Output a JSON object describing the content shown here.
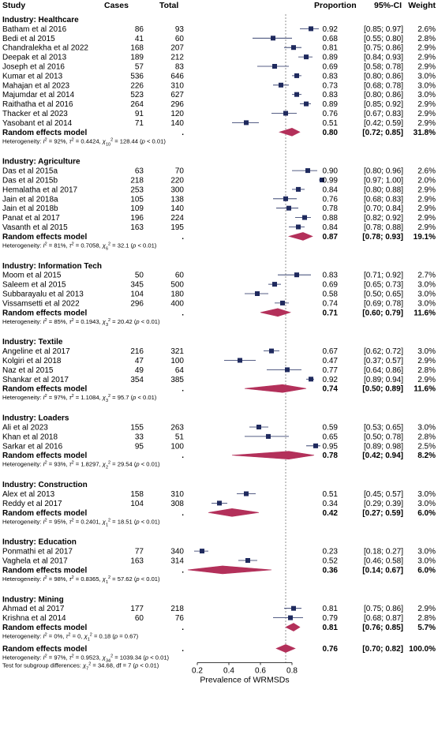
{
  "chart_data": {
    "type": "forest",
    "columns": {
      "study": "Study",
      "cases": "Cases",
      "total": "Total",
      "proportion": "Proportion",
      "ci": "95%-CI",
      "weight": "Weight"
    },
    "xlim": [
      0.2,
      1.0
    ],
    "xticks": [
      "0.2",
      "0.4",
      "0.6",
      "0.8"
    ],
    "xtick_values": [
      0.2,
      0.4,
      0.6,
      0.8
    ],
    "xlabel": "Prevalence of WRMSDs",
    "reference_line": 0.76,
    "groups": [
      {
        "title": "Industry: Healthcare",
        "studies": [
          {
            "name": "Batham et al  2016",
            "cases": "86",
            "total": "93",
            "est": 0.92,
            "lo": 0.85,
            "hi": 0.97,
            "est_txt": "0.92",
            "ci_txt": "[0.85; 0.97]",
            "weight": "2.6%"
          },
          {
            "name": "Bedi et al 2015",
            "cases": "41",
            "total": "60",
            "est": 0.68,
            "lo": 0.55,
            "hi": 0.8,
            "est_txt": "0.68",
            "ci_txt": "[0.55; 0.80]",
            "weight": "2.8%"
          },
          {
            "name": "Chandralekha et al 2022",
            "cases": "168",
            "total": "207",
            "est": 0.81,
            "lo": 0.75,
            "hi": 0.86,
            "est_txt": "0.81",
            "ci_txt": "[0.75; 0.86]",
            "weight": "2.9%"
          },
          {
            "name": "Deepak et al  2013",
            "cases": "189",
            "total": "212",
            "est": 0.89,
            "lo": 0.84,
            "hi": 0.93,
            "est_txt": "0.89",
            "ci_txt": "[0.84; 0.93]",
            "weight": "2.9%"
          },
          {
            "name": "Joseph et al 2016",
            "cases": "57",
            "total": "83",
            "est": 0.69,
            "lo": 0.58,
            "hi": 0.78,
            "est_txt": "0.69",
            "ci_txt": "[0.58; 0.78]",
            "weight": "2.9%"
          },
          {
            "name": "Kumar et al 2013",
            "cases": "536",
            "total": "646",
            "est": 0.83,
            "lo": 0.8,
            "hi": 0.86,
            "est_txt": "0.83",
            "ci_txt": "[0.80; 0.86]",
            "weight": "3.0%"
          },
          {
            "name": "Mahajan et al 2023",
            "cases": "226",
            "total": "310",
            "est": 0.73,
            "lo": 0.68,
            "hi": 0.78,
            "est_txt": "0.73",
            "ci_txt": "[0.68; 0.78]",
            "weight": "3.0%"
          },
          {
            "name": "Majumdar et al  2014",
            "cases": "523",
            "total": "627",
            "est": 0.83,
            "lo": 0.8,
            "hi": 0.86,
            "est_txt": "0.83",
            "ci_txt": "[0.80; 0.86]",
            "weight": "3.0%"
          },
          {
            "name": "Raithatha et al  2016",
            "cases": "264",
            "total": "296",
            "est": 0.89,
            "lo": 0.85,
            "hi": 0.92,
            "est_txt": "0.89",
            "ci_txt": "[0.85; 0.92]",
            "weight": "2.9%"
          },
          {
            "name": "Thacker et al 2023",
            "cases": "91",
            "total": "120",
            "est": 0.76,
            "lo": 0.67,
            "hi": 0.83,
            "est_txt": "0.76",
            "ci_txt": "[0.67; 0.83]",
            "weight": "2.9%"
          },
          {
            "name": "Yasobant et al  2014",
            "cases": "71",
            "total": "140",
            "est": 0.51,
            "lo": 0.42,
            "hi": 0.59,
            "est_txt": "0.51",
            "ci_txt": "[0.42; 0.59]",
            "weight": "2.9%"
          }
        ],
        "pooled": {
          "label": "Random effects model",
          "dot": ".",
          "est": 0.8,
          "lo": 0.72,
          "hi": 0.85,
          "est_txt": "0.80",
          "ci_txt": "[0.72; 0.85]",
          "weight": "31.8%"
        },
        "het_stats": [
          "92%",
          "0.4424",
          "10",
          "128.44",
          "< 0.01"
        ]
      },
      {
        "title": "Industry: Agriculture",
        "studies": [
          {
            "name": "Das et al 2015a",
            "cases": "63",
            "total": "70",
            "est": 0.9,
            "lo": 0.8,
            "hi": 0.96,
            "est_txt": "0.90",
            "ci_txt": "[0.80; 0.96]",
            "weight": "2.6%"
          },
          {
            "name": "Das et al 2015b",
            "cases": "218",
            "total": "220",
            "est": 0.99,
            "lo": 0.97,
            "hi": 1.0,
            "est_txt": "0.99",
            "ci_txt": "[0.97; 1.00]",
            "weight": "2.0%"
          },
          {
            "name": "Hemalatha et al 2017",
            "cases": "253",
            "total": "300",
            "est": 0.84,
            "lo": 0.8,
            "hi": 0.88,
            "est_txt": "0.84",
            "ci_txt": "[0.80; 0.88]",
            "weight": "2.9%"
          },
          {
            "name": "Jain et al 2018a",
            "cases": "105",
            "total": "138",
            "est": 0.76,
            "lo": 0.68,
            "hi": 0.83,
            "est_txt": "0.76",
            "ci_txt": "[0.68; 0.83]",
            "weight": "2.9%"
          },
          {
            "name": "Jain et al 2018b",
            "cases": "109",
            "total": "140",
            "est": 0.78,
            "lo": 0.7,
            "hi": 0.84,
            "est_txt": "0.78",
            "ci_txt": "[0.70; 0.84]",
            "weight": "2.9%"
          },
          {
            "name": "Panat et al   2017",
            "cases": "196",
            "total": "224",
            "est": 0.88,
            "lo": 0.82,
            "hi": 0.92,
            "est_txt": "0.88",
            "ci_txt": "[0.82; 0.92]",
            "weight": "2.9%"
          },
          {
            "name": "Vasanth et al 2015",
            "cases": "163",
            "total": "195",
            "est": 0.84,
            "lo": 0.78,
            "hi": 0.88,
            "est_txt": "0.84",
            "ci_txt": "[0.78; 0.88]",
            "weight": "2.9%"
          }
        ],
        "pooled": {
          "label": "Random effects model",
          "dot": ".",
          "est": 0.87,
          "lo": 0.78,
          "hi": 0.93,
          "est_txt": "0.87",
          "ci_txt": "[0.78; 0.93]",
          "weight": "19.1%"
        },
        "het_stats": [
          "81%",
          "0.7058",
          "6",
          "32.1",
          "< 0.01"
        ]
      },
      {
        "title": "Industry: Information Tech",
        "studies": [
          {
            "name": "Moom et al 2015",
            "cases": "50",
            "total": "60",
            "est": 0.83,
            "lo": 0.71,
            "hi": 0.92,
            "est_txt": "0.83",
            "ci_txt": "[0.71; 0.92]",
            "weight": "2.7%"
          },
          {
            "name": "Saleem et al 2015",
            "cases": "345",
            "total": "500",
            "est": 0.69,
            "lo": 0.65,
            "hi": 0.73,
            "est_txt": "0.69",
            "ci_txt": "[0.65; 0.73]",
            "weight": "3.0%"
          },
          {
            "name": "Subbarayalu et al 2013",
            "cases": "104",
            "total": "180",
            "est": 0.58,
            "lo": 0.5,
            "hi": 0.65,
            "est_txt": "0.58",
            "ci_txt": "[0.50; 0.65]",
            "weight": "3.0%"
          },
          {
            "name": "Vissamsetti et al 2022",
            "cases": "296",
            "total": "400",
            "est": 0.74,
            "lo": 0.69,
            "hi": 0.78,
            "est_txt": "0.74",
            "ci_txt": "[0.69; 0.78]",
            "weight": "3.0%"
          }
        ],
        "pooled": {
          "label": "Random effects model",
          "dot": ".",
          "est": 0.71,
          "lo": 0.6,
          "hi": 0.79,
          "est_txt": "0.71",
          "ci_txt": "[0.60; 0.79]",
          "weight": "11.6%"
        },
        "het_stats": [
          "85%",
          "0.1943",
          "3",
          "20.42",
          "< 0.01"
        ]
      },
      {
        "title": "Industry: Textile",
        "studies": [
          {
            "name": "Angeline et al 2017",
            "cases": "216",
            "total": "321",
            "est": 0.67,
            "lo": 0.62,
            "hi": 0.72,
            "est_txt": "0.67",
            "ci_txt": "[0.62; 0.72]",
            "weight": "3.0%"
          },
          {
            "name": "Kolgiri et al 2018",
            "cases": "47",
            "total": "100",
            "est": 0.47,
            "lo": 0.37,
            "hi": 0.57,
            "est_txt": "0.47",
            "ci_txt": "[0.37; 0.57]",
            "weight": "2.9%"
          },
          {
            "name": "Naz et al 2015",
            "cases": "49",
            "total": "64",
            "est": 0.77,
            "lo": 0.64,
            "hi": 0.86,
            "est_txt": "0.77",
            "ci_txt": "[0.64; 0.86]",
            "weight": "2.8%"
          },
          {
            "name": "Shankar et al 2017",
            "cases": "354",
            "total": "385",
            "est": 0.92,
            "lo": 0.89,
            "hi": 0.94,
            "est_txt": "0.92",
            "ci_txt": "[0.89; 0.94]",
            "weight": "2.9%"
          }
        ],
        "pooled": {
          "label": "Random effects model",
          "dot": ".",
          "est": 0.74,
          "lo": 0.5,
          "hi": 0.89,
          "est_txt": "0.74",
          "ci_txt": "[0.50; 0.89]",
          "weight": "11.6%"
        },
        "het_stats": [
          "97%",
          "1.1084",
          "3",
          "95.7",
          "< 0.01"
        ]
      },
      {
        "title": "Industry: Loaders",
        "studies": [
          {
            "name": "Ali et al 2023",
            "cases": "155",
            "total": "263",
            "est": 0.59,
            "lo": 0.53,
            "hi": 0.65,
            "est_txt": "0.59",
            "ci_txt": "[0.53; 0.65]",
            "weight": "3.0%"
          },
          {
            "name": "Khan et al 2018",
            "cases": "33",
            "total": "51",
            "est": 0.65,
            "lo": 0.5,
            "hi": 0.78,
            "est_txt": "0.65",
            "ci_txt": "[0.50; 0.78]",
            "weight": "2.8%"
          },
          {
            "name": "Sarkar et al 2016",
            "cases": "95",
            "total": "100",
            "est": 0.95,
            "lo": 0.89,
            "hi": 0.98,
            "est_txt": "0.95",
            "ci_txt": "[0.89; 0.98]",
            "weight": "2.5%"
          }
        ],
        "pooled": {
          "label": "Random effects model",
          "dot": ".",
          "est": 0.78,
          "lo": 0.42,
          "hi": 0.94,
          "est_txt": "0.78",
          "ci_txt": "[0.42; 0.94]",
          "weight": "8.2%"
        },
        "het_stats": [
          "93%",
          "1.8297",
          "2",
          "29.54",
          "< 0.01"
        ]
      },
      {
        "title": "Industry: Construction",
        "studies": [
          {
            "name": "Alex et al 2013",
            "cases": "158",
            "total": "310",
            "est": 0.51,
            "lo": 0.45,
            "hi": 0.57,
            "est_txt": "0.51",
            "ci_txt": "[0.45; 0.57]",
            "weight": "3.0%"
          },
          {
            "name": "Reddy et al   2017",
            "cases": "104",
            "total": "308",
            "est": 0.34,
            "lo": 0.29,
            "hi": 0.39,
            "est_txt": "0.34",
            "ci_txt": "[0.29; 0.39]",
            "weight": "3.0%"
          }
        ],
        "pooled": {
          "label": "Random effects model",
          "dot": ".",
          "est": 0.42,
          "lo": 0.27,
          "hi": 0.59,
          "est_txt": "0.42",
          "ci_txt": "[0.27; 0.59]",
          "weight": "6.0%"
        },
        "het_stats": [
          "95%",
          "0.2401",
          "1",
          "18.51",
          "< 0.01"
        ]
      },
      {
        "title": "Industry: Education",
        "studies": [
          {
            "name": "Ponmathi et al  2017",
            "cases": "77",
            "total": "340",
            "est": 0.23,
            "lo": 0.18,
            "hi": 0.27,
            "est_txt": "0.23",
            "ci_txt": "[0.18; 0.27]",
            "weight": "3.0%"
          },
          {
            "name": "Vaghela et al  2017",
            "cases": "163",
            "total": "314",
            "est": 0.52,
            "lo": 0.46,
            "hi": 0.58,
            "est_txt": "0.52",
            "ci_txt": "[0.46; 0.58]",
            "weight": "3.0%"
          }
        ],
        "pooled": {
          "label": "Random effects model",
          "dot": ".",
          "est": 0.36,
          "lo": 0.14,
          "hi": 0.67,
          "est_txt": "0.36",
          "ci_txt": "[0.14; 0.67]",
          "weight": "6.0%"
        },
        "het_stats": [
          "98%",
          "0.8365",
          "1",
          "57.62",
          "< 0.01"
        ]
      },
      {
        "title": "Industry: Mining",
        "studies": [
          {
            "name": "Ahmad et al 2017",
            "cases": "177",
            "total": "218",
            "est": 0.81,
            "lo": 0.75,
            "hi": 0.86,
            "est_txt": "0.81",
            "ci_txt": "[0.75; 0.86]",
            "weight": "2.9%"
          },
          {
            "name": "Krishna et al 2014",
            "cases": "60",
            "total": "76",
            "est": 0.79,
            "lo": 0.68,
            "hi": 0.87,
            "est_txt": "0.79",
            "ci_txt": "[0.68; 0.87]",
            "weight": "2.8%"
          }
        ],
        "pooled": {
          "label": "Random effects model",
          "dot": ".",
          "est": 0.81,
          "lo": 0.76,
          "hi": 0.85,
          "est_txt": "0.81",
          "ci_txt": "[0.76; 0.85]",
          "weight": "5.7%"
        },
        "het_stats": [
          "0%",
          "0",
          "1",
          "0.18",
          "= 0.67"
        ]
      }
    ],
    "overall": {
      "label": "Random effects model",
      "dot": ".",
      "est": 0.76,
      "lo": 0.7,
      "hi": 0.82,
      "est_txt": "0.76",
      "ci_txt": "[0.70; 0.82]",
      "weight": "100.0%",
      "het_stats": [
        "97%",
        "0.9523",
        "34",
        "1039.34",
        "< 0.01"
      ]
    },
    "subgroup_test_stats": [
      "34.68",
      "7",
      "< 0.01"
    ],
    "colors": {
      "study_square": "#1f2a5e",
      "diamond": "#b3305a",
      "reference_line": "#777777",
      "text": "#000000"
    }
  }
}
